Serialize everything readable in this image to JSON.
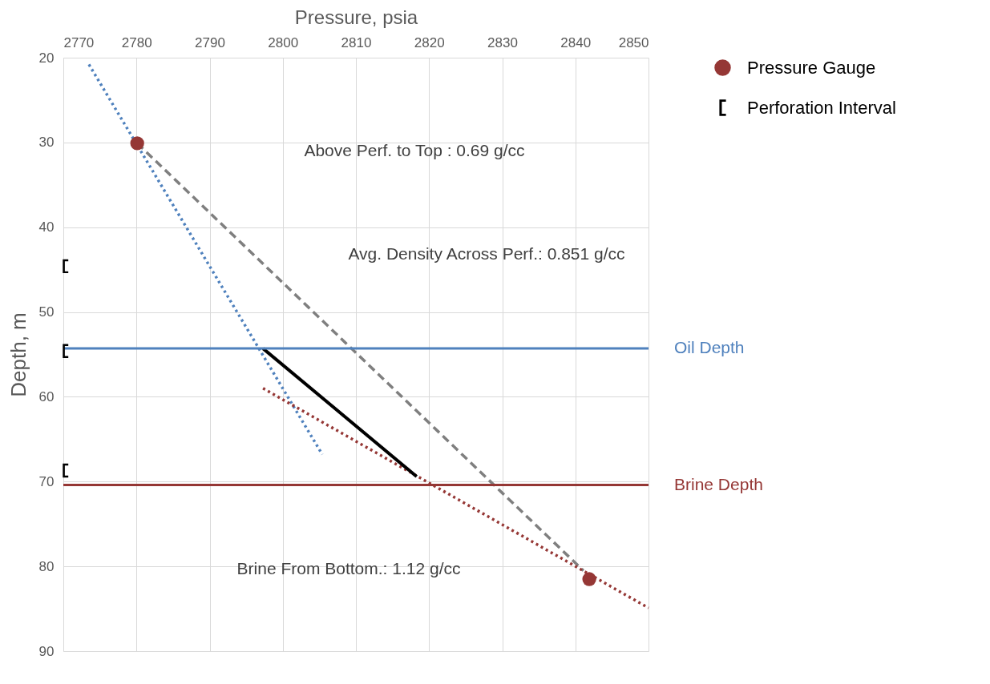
{
  "chart_data": {
    "type": "line",
    "xlabel": "Pressure, psia",
    "ylabel": "Depth, m",
    "xlim": [
      2770,
      2850
    ],
    "xticks": [
      2770,
      2780,
      2790,
      2800,
      2810,
      2820,
      2830,
      2840,
      2850
    ],
    "ylim": [
      90,
      20
    ],
    "yticks": [
      20,
      30,
      40,
      50,
      60,
      70,
      80,
      90
    ],
    "grid": true,
    "legend": "top right",
    "series": [
      {
        "type": "line",
        "color": "#4f81bd",
        "line_style": "dotted",
        "x": [
          2773.5,
          2805.4
        ],
        "values": [
          20.8,
          66.8
        ]
      },
      {
        "type": "line",
        "color": "#7f7f7f",
        "line_style": "dashed",
        "x": [
          2780.1,
          2841.1
        ],
        "values": [
          30.1,
          80.5
        ]
      },
      {
        "type": "line",
        "color": "#953735",
        "line_style": "dotted",
        "x": [
          2797.3,
          2850
        ],
        "values": [
          59,
          84.9
        ]
      },
      {
        "type": "line",
        "color": "#000000",
        "line_style": "solid",
        "x": [
          2797.3,
          2818.3
        ],
        "values": [
          54.3,
          69.4
        ]
      },
      {
        "type": "scatter",
        "name": "Pressure Gauge",
        "color": "#953735",
        "marker": "circle",
        "x": [
          2780.1,
          2841.9
        ],
        "values": [
          30.1,
          81.5
        ]
      },
      {
        "type": "scatter",
        "name": "Perforation Interval",
        "color": "#000000",
        "x": [
          2770.3,
          2770.3,
          2770.3
        ],
        "values": [
          44.6,
          54.6,
          68.7
        ]
      }
    ],
    "ref_lines": [
      {
        "axis": "y",
        "value": 54.3,
        "label": "Oil Depth",
        "color": "#4f81bd"
      },
      {
        "axis": "y",
        "value": 70.4,
        "label": "Brine Depth",
        "color": "#953735"
      }
    ],
    "annotations": [
      "Above Perf. to Top : 0.69 g/cc",
      "Avg. Density Across Perf.: 0.851 g/cc",
      "Brine From Bottom.: 1.12 g/cc"
    ]
  }
}
